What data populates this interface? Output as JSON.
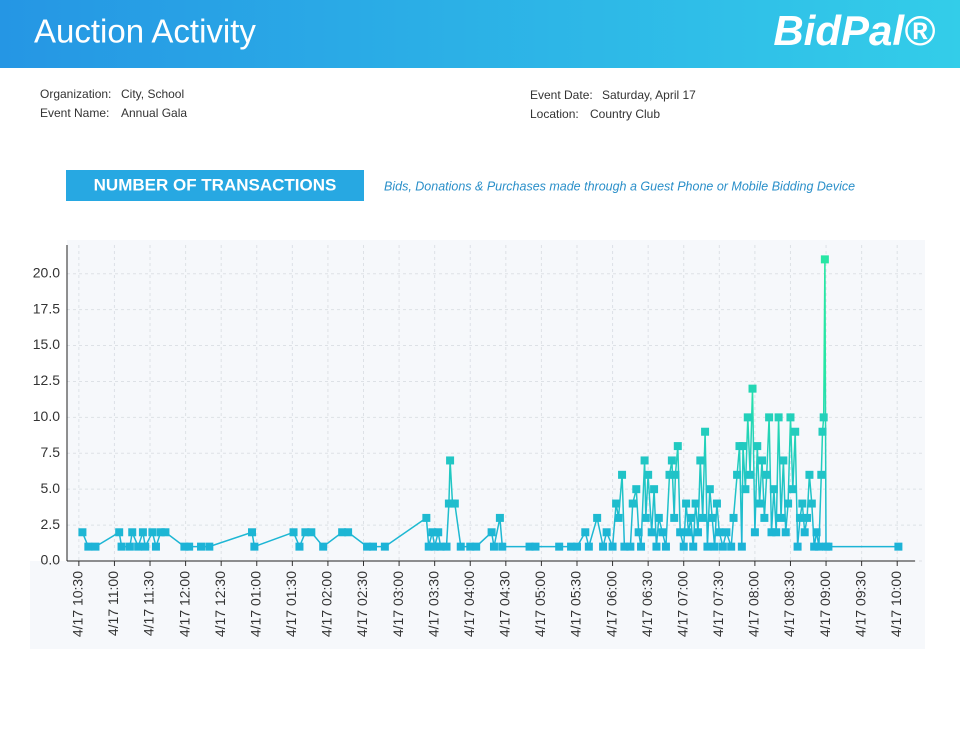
{
  "header": {
    "title": "Auction Activity",
    "logo": "BidPal®"
  },
  "info_left": [
    {
      "label": "Organization:",
      "value": "City, School"
    },
    {
      "label": "Event Name:",
      "value": "Annual Gala"
    }
  ],
  "info_right": [
    {
      "label": "Event Date:",
      "value": "Saturday, April 17"
    },
    {
      "label": "Location:",
      "value": "Country Club"
    }
  ],
  "section": {
    "title": "NUMBER OF TRANSACTIONS",
    "subtitle": "Bids, Donations & Purchases made through a Guest Phone or Mobile Bidding Device"
  },
  "chart_data": {
    "type": "line",
    "colors": [
      "#1cb0da",
      "#27e6a4"
    ],
    "grid": true,
    "xlim": [
      "10:20",
      "22:15"
    ],
    "ylim": [
      0,
      22
    ],
    "yticks": [
      {
        "value": 0,
        "label": "0.0"
      },
      2.5,
      {
        "value": 5,
        "label": "5.0"
      },
      7.5,
      {
        "value": 10,
        "label": "10.0"
      },
      12.5,
      {
        "value": 15,
        "label": "15.0"
      },
      17.5,
      {
        "value": 20,
        "label": "20.0"
      }
    ],
    "xticks": [
      {
        "value": "10:30",
        "label": "4/17  10:30"
      },
      {
        "value": "11:00",
        "label": "4/17  11:00"
      },
      {
        "value": "11:30",
        "label": "4/17  11:30"
      },
      {
        "value": "12:00",
        "label": "4/17  12:00"
      },
      {
        "value": "12:30",
        "label": "4/17  12:30"
      },
      {
        "value": "13:00",
        "label": "4/17  01:00"
      },
      {
        "value": "13:30",
        "label": "4/17  01:30"
      },
      {
        "value": "14:00",
        "label": "4/17  02:00"
      },
      {
        "value": "14:30",
        "label": "4/17  02:30"
      },
      {
        "value": "15:00",
        "label": "4/17  03:00"
      },
      {
        "value": "15:30",
        "label": "4/17  03:30"
      },
      {
        "value": "16:00",
        "label": "4/17  04:00"
      },
      {
        "value": "16:30",
        "label": "4/17  04:30"
      },
      {
        "value": "17:00",
        "label": "4/17  05:00"
      },
      {
        "value": "17:30",
        "label": "4/17  05:30"
      },
      {
        "value": "18:00",
        "label": "4/17  06:00"
      },
      {
        "value": "18:30",
        "label": "4/17  06:30"
      },
      {
        "value": "19:00",
        "label": "4/17  07:00"
      },
      {
        "value": "19:30",
        "label": "4/17  07:30"
      },
      {
        "value": "20:00",
        "label": "4/17  08:00"
      },
      {
        "value": "20:30",
        "label": "4/17  08:30"
      },
      {
        "value": "21:00",
        "label": "4/17  09:00"
      },
      {
        "value": "21:30",
        "label": "4/17  09:30"
      },
      {
        "value": "22:00",
        "label": "4/17  10:00"
      }
    ],
    "x": [
      "10:33",
      "10:38",
      "10:44",
      "11:04",
      "11:06",
      "11:13",
      "11:15",
      "11:20",
      "11:24",
      "11:26",
      "11:32",
      "11:35",
      "11:39",
      "11:43",
      "11:59",
      "12:03",
      "12:13",
      "12:20",
      "12:56",
      "12:58",
      "13:31",
      "13:36",
      "13:41",
      "13:46",
      "13:56",
      "14:12",
      "14:17",
      "14:33",
      "14:38",
      "14:48",
      "15:23",
      "15:25",
      "15:28",
      "15:30",
      "15:33",
      "15:35",
      "15:40",
      "15:42",
      "15:43",
      "15:45",
      "15:47",
      "15:52",
      "16:00",
      "16:05",
      "16:18",
      "16:20",
      "16:25",
      "16:27",
      "16:50",
      "16:55",
      "17:15",
      "17:25",
      "17:30",
      "17:37",
      "17:40",
      "17:47",
      "17:52",
      "17:55",
      "18:00",
      "18:03",
      "18:05",
      "18:08",
      "18:10",
      "18:15",
      "18:17",
      "18:20",
      "18:22",
      "18:24",
      "18:27",
      "18:28",
      "18:30",
      "18:33",
      "18:35",
      "18:37",
      "18:39",
      "18:42",
      "18:45",
      "18:48",
      "18:50",
      "18:52",
      "18:53",
      "18:55",
      "18:57",
      "19:00",
      "19:02",
      "19:04",
      "19:06",
      "19:08",
      "19:10",
      "19:12",
      "19:14",
      "19:16",
      "19:18",
      "19:20",
      "19:22",
      "19:24",
      "19:26",
      "19:28",
      "19:30",
      "19:33",
      "19:36",
      "19:40",
      "19:42",
      "19:45",
      "19:47",
      "19:49",
      "19:50",
      "19:52",
      "19:54",
      "19:56",
      "19:58",
      "20:00",
      "20:02",
      "20:04",
      "20:06",
      "20:08",
      "20:10",
      "20:12",
      "20:14",
      "20:16",
      "20:18",
      "20:20",
      "20:22",
      "20:24",
      "20:26",
      "20:28",
      "20:30",
      "20:32",
      "20:34",
      "20:36",
      "20:38",
      "20:40",
      "20:42",
      "20:44",
      "20:46",
      "20:48",
      "20:50",
      "20:52",
      "20:54",
      "20:56",
      "20:57",
      "20:58",
      "20:59",
      "21:00",
      "21:02",
      "22:01"
    ],
    "values": [
      2,
      1,
      1,
      2,
      1,
      1,
      2,
      1,
      2,
      1,
      2,
      1,
      2,
      2,
      1,
      1,
      1,
      1,
      2,
      1,
      2,
      1,
      2,
      2,
      1,
      2,
      2,
      1,
      1,
      1,
      3,
      1,
      2,
      1,
      2,
      1,
      1,
      4,
      7,
      4,
      4,
      1,
      1,
      1,
      2,
      1,
      3,
      1,
      1,
      1,
      1,
      1,
      1,
      2,
      1,
      3,
      1,
      2,
      1,
      4,
      3,
      6,
      1,
      1,
      4,
      5,
      2,
      1,
      7,
      3,
      6,
      2,
      5,
      1,
      3,
      2,
      1,
      6,
      7,
      3,
      6,
      8,
      2,
      1,
      4,
      2,
      3,
      1,
      4,
      2,
      7,
      3,
      9,
      1,
      5,
      3,
      1,
      4,
      2,
      1,
      2,
      1,
      3,
      6,
      8,
      1,
      8,
      5,
      10,
      6,
      12,
      2,
      8,
      4,
      7,
      3,
      6,
      10,
      2,
      5,
      2,
      10,
      3,
      7,
      2,
      4,
      10,
      5,
      9,
      1,
      3,
      4,
      2,
      3,
      6,
      4,
      1,
      2,
      1,
      6,
      9,
      10,
      21,
      1,
      1,
      1
    ]
  }
}
